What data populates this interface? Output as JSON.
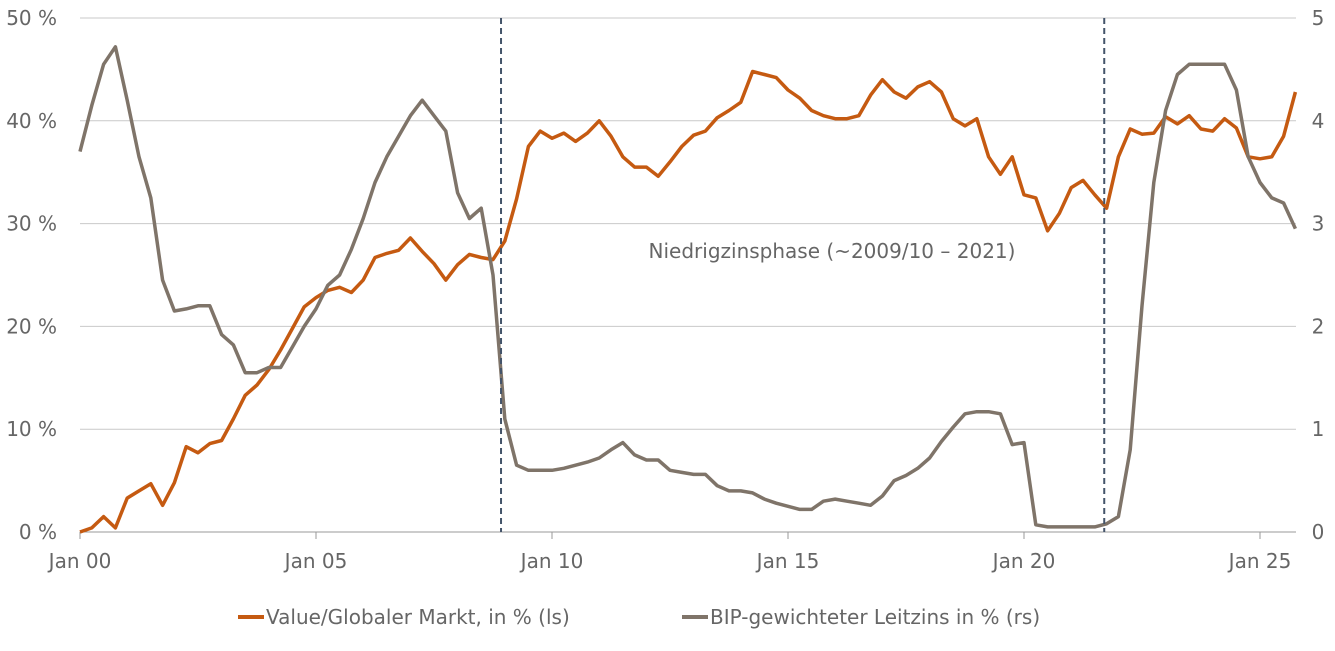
{
  "chart_data": {
    "type": "line",
    "title": "",
    "annotation": "Niedrigzinsphase (~2009/10 – 2021)",
    "markers": [
      2008.92,
      2021.7
    ],
    "xlim": [
      2000,
      2025.75
    ],
    "x_ticks": [
      {
        "value": 2000,
        "label": "Jan 00"
      },
      {
        "value": 2005,
        "label": "Jan 05"
      },
      {
        "value": 2010,
        "label": "Jan 10"
      },
      {
        "value": 2015,
        "label": "Jan 15"
      },
      {
        "value": 2020,
        "label": "Jan 20"
      },
      {
        "value": 2025,
        "label": "Jan 25"
      }
    ],
    "y_left": {
      "ylim": [
        0,
        50
      ],
      "ticks": [
        0,
        10,
        20,
        30,
        40,
        50
      ],
      "tick_labels": [
        "0 %",
        "10 %",
        "20 %",
        "30 %",
        "40 %",
        "50 %"
      ]
    },
    "y_right": {
      "ylim": [
        0,
        5
      ],
      "ticks": [
        0,
        1,
        2,
        3,
        4,
        5
      ],
      "tick_labels": [
        "0",
        "1",
        "2",
        "3",
        "4",
        "5"
      ]
    },
    "grid": true,
    "legend_position": "bottom",
    "x_start": 2000,
    "x_step": 0.25,
    "series": [
      {
        "name": "Value/Globaler Markt, in % (ls)",
        "axis": "left",
        "color": "#c55a11",
        "values": [
          0,
          0.4,
          1.5,
          0.4,
          3.3,
          4.0,
          4.7,
          2.6,
          4.8,
          8.3,
          7.7,
          8.6,
          8.9,
          11.0,
          13.3,
          14.3,
          15.8,
          17.7,
          19.8,
          21.9,
          22.8,
          23.5,
          23.8,
          23.3,
          24.5,
          26.7,
          27.1,
          27.4,
          28.6,
          27.3,
          26.1,
          24.5,
          26.0,
          27.0,
          26.7,
          26.5,
          28.3,
          32.4,
          37.5,
          39.0,
          38.3,
          38.8,
          38.0,
          38.8,
          40.0,
          38.5,
          36.5,
          35.5,
          35.5,
          34.6,
          36.0,
          37.5,
          38.6,
          39.0,
          40.3,
          41.0,
          41.8,
          44.8,
          44.5,
          44.2,
          43.0,
          42.2,
          41.0,
          40.5,
          40.2,
          40.2,
          40.5,
          42.5,
          44.0,
          42.8,
          42.2,
          43.3,
          43.8,
          42.8,
          40.2,
          39.5,
          40.2,
          36.5,
          34.8,
          36.5,
          32.8,
          32.5,
          29.3,
          31.0,
          33.5,
          34.2,
          32.8,
          31.5,
          36.5,
          39.2,
          38.7,
          38.8,
          40.4,
          39.7,
          40.5,
          39.2,
          39.0,
          40.2,
          39.3,
          36.5,
          36.3,
          36.5,
          38.5,
          42.8
        ]
      },
      {
        "name": "BIP-gewichteter Leitzins in % (rs)",
        "axis": "right",
        "color": "#7f7469",
        "values": [
          3.7,
          4.15,
          4.55,
          4.72,
          4.2,
          3.65,
          3.25,
          2.45,
          2.15,
          2.17,
          2.2,
          2.2,
          1.92,
          1.82,
          1.55,
          1.55,
          1.6,
          1.6,
          1.8,
          2.0,
          2.17,
          2.4,
          2.5,
          2.75,
          3.05,
          3.4,
          3.65,
          3.85,
          4.05,
          4.2,
          4.05,
          3.9,
          3.3,
          3.05,
          3.15,
          2.5,
          1.1,
          0.65,
          0.6,
          0.6,
          0.6,
          0.62,
          0.65,
          0.68,
          0.72,
          0.8,
          0.87,
          0.75,
          0.7,
          0.7,
          0.6,
          0.58,
          0.56,
          0.56,
          0.45,
          0.4,
          0.4,
          0.38,
          0.32,
          0.28,
          0.25,
          0.22,
          0.22,
          0.3,
          0.32,
          0.3,
          0.28,
          0.26,
          0.35,
          0.5,
          0.55,
          0.62,
          0.72,
          0.88,
          1.02,
          1.15,
          1.17,
          1.17,
          1.15,
          0.85,
          0.87,
          0.07,
          0.05,
          0.05,
          0.05,
          0.05,
          0.05,
          0.08,
          0.15,
          0.8,
          2.2,
          3.4,
          4.1,
          4.45,
          4.55,
          4.55,
          4.55,
          4.55,
          4.3,
          3.65,
          3.4,
          3.25,
          3.2,
          2.95
        ]
      }
    ]
  }
}
